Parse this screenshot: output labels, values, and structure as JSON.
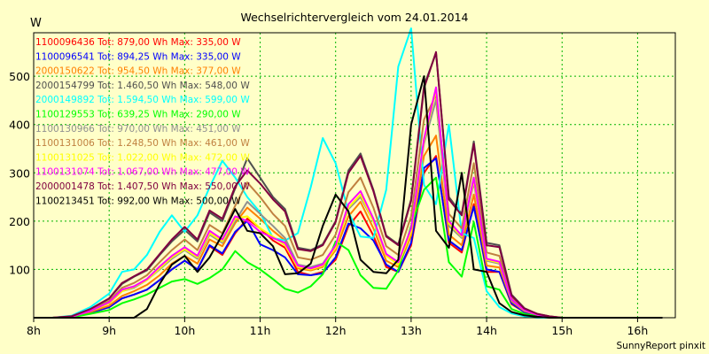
{
  "chart_data": {
    "type": "line",
    "title": "Wechselrichtervergleich vom 24.01.2014",
    "ylabel": "W",
    "footer": "SunnyReport pinxit",
    "x_ticks": [
      "8h",
      "9h",
      "10h",
      "11h",
      "12h",
      "13h",
      "14h",
      "15h",
      "16h"
    ],
    "y_ticks": [
      100,
      200,
      300,
      400,
      500
    ],
    "xlim": [
      8,
      16.5
    ],
    "ylim": [
      0,
      590
    ],
    "grid": true,
    "legend_position": "top-left",
    "x": [
      8.0,
      8.25,
      8.5,
      8.75,
      9.0,
      9.17,
      9.33,
      9.5,
      9.67,
      9.83,
      10.0,
      10.17,
      10.33,
      10.5,
      10.67,
      10.83,
      11.0,
      11.17,
      11.33,
      11.5,
      11.67,
      11.83,
      12.0,
      12.17,
      12.33,
      12.5,
      12.67,
      12.83,
      13.0,
      13.17,
      13.33,
      13.5,
      13.67,
      13.83,
      14.0,
      14.17,
      14.33,
      14.5,
      14.67,
      14.83,
      15.0,
      15.17,
      15.33,
      15.5,
      15.67,
      15.83,
      16.0,
      16.17,
      16.33
    ],
    "series": [
      {
        "name": "1100096436 Tot: 879,00 Wh Max: 335,00 W",
        "color": "#ff0000",
        "values": [
          0,
          0,
          2,
          10,
          22,
          40,
          48,
          58,
          78,
          100,
          118,
          100,
          148,
          130,
          175,
          205,
          185,
          160,
          145,
          95,
          88,
          95,
          120,
          190,
          220,
          170,
          105,
          95,
          150,
          300,
          335,
          155,
          135,
          235,
          95,
          95,
          28,
          12,
          5,
          2,
          0,
          0,
          0,
          0,
          0,
          0,
          0,
          0,
          0
        ]
      },
      {
        "name": "1100096541 Tot: 894,25 Wh Max: 335,00 W",
        "color": "#0000ff",
        "values": [
          0,
          0,
          2,
          10,
          22,
          40,
          48,
          58,
          78,
          100,
          118,
          100,
          150,
          133,
          178,
          200,
          152,
          140,
          125,
          90,
          88,
          92,
          125,
          195,
          185,
          160,
          110,
          95,
          155,
          310,
          330,
          160,
          140,
          230,
          100,
          95,
          30,
          12,
          5,
          2,
          0,
          0,
          0,
          0,
          0,
          0,
          0,
          0,
          0
        ]
      },
      {
        "name": "2000150622 Tot: 954,50 Wh Max: 377,00 W",
        "color": "#ff8000",
        "values": [
          0,
          0,
          2,
          12,
          25,
          45,
          55,
          68,
          88,
          112,
          128,
          112,
          162,
          148,
          196,
          228,
          205,
          180,
          160,
          102,
          98,
          105,
          140,
          210,
          240,
          185,
          118,
          105,
          170,
          335,
          377,
          172,
          150,
          255,
          108,
          104,
          34,
          14,
          6,
          2,
          0,
          0,
          0,
          0,
          0,
          0,
          0,
          0,
          0
        ]
      },
      {
        "name": "2000154799 Tot: 1.460,50 Wh Max: 548,00 W",
        "color": "#505050",
        "values": [
          0,
          0,
          3,
          18,
          40,
          70,
          85,
          98,
          130,
          158,
          182,
          158,
          218,
          200,
          268,
          330,
          290,
          250,
          225,
          145,
          140,
          152,
          200,
          305,
          340,
          265,
          170,
          152,
          245,
          480,
          548,
          250,
          215,
          365,
          155,
          150,
          48,
          20,
          8,
          3,
          0,
          0,
          0,
          0,
          0,
          0,
          0,
          0,
          0
        ]
      },
      {
        "name": "2000149892 Tot: 1.594,50 Wh Max: 599,00 W",
        "color": "#00ffff",
        "values": [
          0,
          0,
          4,
          22,
          50,
          95,
          100,
          130,
          178,
          212,
          178,
          212,
          270,
          325,
          290,
          250,
          218,
          165,
          160,
          175,
          270,
          372,
          320,
          218,
          168,
          165,
          265,
          520,
          599,
          275,
          235,
          400,
          175,
          165,
          55,
          22,
          9,
          3,
          0,
          0,
          0,
          0,
          0,
          0,
          0,
          0,
          0,
          0,
          0
        ]
      },
      {
        "name": "1100129553 Tot: 639,25 Wh Max: 290,00 W",
        "color": "#00ff00",
        "values": [
          0,
          0,
          1,
          8,
          16,
          30,
          38,
          48,
          62,
          75,
          80,
          70,
          82,
          100,
          138,
          115,
          100,
          80,
          60,
          52,
          65,
          90,
          158,
          140,
          88,
          62,
          60,
          98,
          190,
          265,
          290,
          115,
          85,
          198,
          65,
          58,
          18,
          8,
          3,
          1,
          0,
          0,
          0,
          0,
          0,
          0,
          0,
          0,
          0
        ]
      },
      {
        "name": "1100130966 Tot: 970,00 Wh Max: 451,00 W",
        "color": "#909090",
        "values": [
          0,
          0,
          2,
          14,
          30,
          55,
          62,
          78,
          100,
          122,
          140,
          122,
          172,
          155,
          200,
          240,
          215,
          190,
          165,
          110,
          105,
          112,
          150,
          225,
          250,
          200,
          130,
          112,
          180,
          360,
          451,
          190,
          165,
          280,
          118,
          112,
          36,
          15,
          6,
          2,
          0,
          0,
          0,
          0,
          0,
          0,
          0,
          0,
          0
        ]
      },
      {
        "name": "1100131006 Tot: 1.248,50 Wh Max: 461,00 W",
        "color": "#c08040",
        "values": [
          0,
          0,
          3,
          16,
          35,
          62,
          72,
          88,
          115,
          140,
          162,
          140,
          192,
          175,
          232,
          280,
          250,
          215,
          190,
          125,
          120,
          130,
          172,
          260,
          290,
          228,
          148,
          130,
          210,
          410,
          461,
          215,
          185,
          320,
          135,
          128,
          42,
          17,
          7,
          2,
          0,
          0,
          0,
          0,
          0,
          0,
          0,
          0,
          0
        ]
      },
      {
        "name": "1100131025 Tot: 1.022,00 Wh Max: 472,00 W",
        "color": "#ffff00",
        "values": [
          0,
          0,
          2,
          14,
          30,
          55,
          64,
          78,
          102,
          125,
          142,
          125,
          175,
          158,
          205,
          210,
          185,
          168,
          150,
          105,
          100,
          108,
          145,
          228,
          255,
          200,
          128,
          110,
          178,
          365,
          472,
          195,
          168,
          285,
          120,
          114,
          38,
          15,
          6,
          2,
          0,
          0,
          0,
          0,
          0,
          0,
          0,
          0,
          0
        ]
      },
      {
        "name": "1100131074 Tot: 1.067,00 Wh Max: 477,00 W",
        "color": "#ff00ff",
        "values": [
          0,
          0,
          2,
          14,
          32,
          58,
          65,
          80,
          106,
          128,
          146,
          128,
          180,
          162,
          210,
          200,
          178,
          165,
          155,
          108,
          102,
          110,
          150,
          235,
          262,
          205,
          132,
          115,
          185,
          370,
          477,
          200,
          170,
          290,
          122,
          116,
          38,
          16,
          6,
          2,
          0,
          0,
          0,
          0,
          0,
          0,
          0,
          0,
          0
        ]
      },
      {
        "name": "2000001478 Tot: 1.407,50 Wh Max: 550,00 W",
        "color": "#800040",
        "values": [
          0,
          0,
          3,
          18,
          40,
          72,
          86,
          100,
          132,
          162,
          188,
          162,
          222,
          205,
          272,
          305,
          278,
          245,
          220,
          142,
          138,
          150,
          198,
          300,
          335,
          262,
          168,
          150,
          242,
          475,
          550,
          245,
          212,
          360,
          150,
          146,
          46,
          19,
          8,
          3,
          0,
          0,
          0,
          0,
          0,
          0,
          0,
          0,
          0
        ]
      },
      {
        "name": "1100213451 Tot: 992,00 Wh Max: 500,00 W",
        "color": "#000000",
        "values": [
          0,
          0,
          0,
          0,
          0,
          0,
          0,
          18,
          70,
          110,
          128,
          95,
          125,
          172,
          225,
          180,
          175,
          148,
          90,
          92,
          112,
          190,
          255,
          220,
          120,
          95,
          92,
          120,
          400,
          500,
          180,
          145,
          300,
          100,
          95,
          30,
          12,
          5,
          2,
          0,
          0,
          0,
          0,
          0,
          0,
          0,
          0,
          0,
          0
        ]
      }
    ]
  }
}
